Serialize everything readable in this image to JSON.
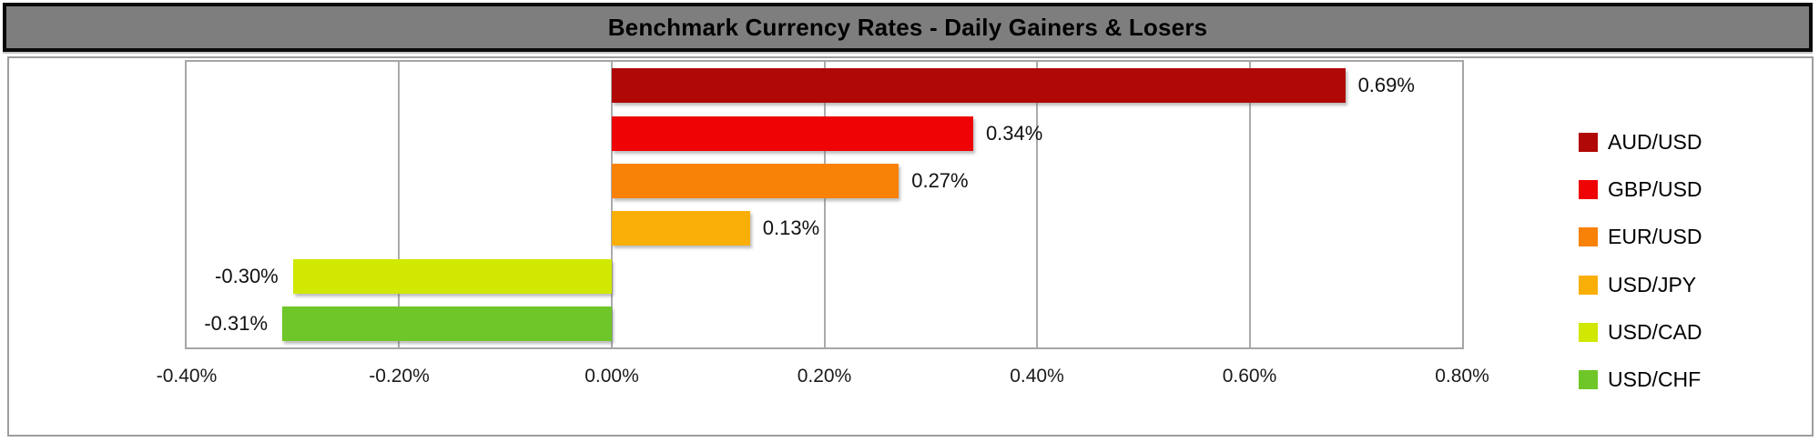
{
  "title_bar": {
    "text": "Benchmark Currency Rates - Daily Gainers & Losers"
  },
  "chart_data": {
    "type": "bar",
    "orientation": "horizontal",
    "title": "Benchmark Currency Rates - Daily Gainers & Losers",
    "unit": "percent",
    "grid": true,
    "legend_position": "right",
    "xlim": [
      -0.4,
      0.8
    ],
    "series": [
      {
        "name": "AUD/USD",
        "value": 0.69,
        "label": "0.69%",
        "color": "#b00707"
      },
      {
        "name": "GBP/USD",
        "value": 0.34,
        "label": "0.34%",
        "color": "#ee0404"
      },
      {
        "name": "EUR/USD",
        "value": 0.27,
        "label": "0.27%",
        "color": "#f88108"
      },
      {
        "name": "USD/JPY",
        "value": 0.13,
        "label": "0.13%",
        "color": "#faaf08"
      },
      {
        "name": "USD/CAD",
        "value": -0.3,
        "label": "-0.30%",
        "color": "#d0e802"
      },
      {
        "name": "USD/CHF",
        "value": -0.31,
        "label": "-0.31%",
        "color": "#6ec628"
      }
    ],
    "x_ticks": [
      {
        "value": -0.4,
        "label": "-0.40%"
      },
      {
        "value": -0.2,
        "label": "-0.20%"
      },
      {
        "value": 0.0,
        "label": "0.00%"
      },
      {
        "value": 0.2,
        "label": "0.20%"
      },
      {
        "value": 0.4,
        "label": "0.40%"
      },
      {
        "value": 0.6,
        "label": "0.60%"
      },
      {
        "value": 0.8,
        "label": "0.80%"
      }
    ]
  },
  "colors": {
    "title_bar_bg": "#7e7e7e",
    "title_bar_border": "#0a0a0a",
    "chart_border": "#9e9e9e",
    "gridline": "#ababab",
    "background": "#ffffff"
  }
}
